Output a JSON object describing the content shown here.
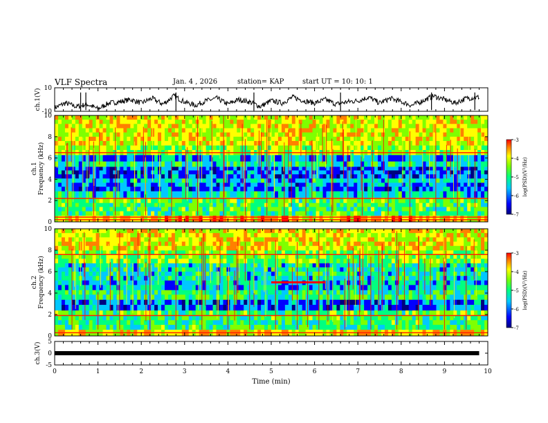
{
  "header": {
    "title": "VLF Spectra",
    "date": "Jan. 4 , 2026",
    "station": "station= KAP",
    "start": "start  UT =   10: 10: 1"
  },
  "colors": {
    "trace": "#000000",
    "colormap": [
      "#00007f",
      "#0000ff",
      "#00c8ff",
      "#00ff80",
      "#7fff00",
      "#ffff00",
      "#ff8000",
      "#ff0000"
    ]
  },
  "chart_data": [
    {
      "type": "line",
      "name": "ch1-waveform",
      "ylabel": "ch.1(V)",
      "ylim": [
        -10,
        10
      ],
      "yticks": [
        "10",
        "-10"
      ],
      "x": [
        0,
        0.25,
        0.5,
        0.75,
        1,
        1.25,
        1.5,
        1.75,
        2,
        2.25,
        2.5,
        2.75,
        3,
        3.25,
        3.5,
        3.75,
        4,
        4.25,
        4.5,
        4.75,
        5,
        5.25,
        5.5,
        5.75,
        6,
        6.25,
        6.5,
        6.75,
        7,
        7.25,
        7.5,
        7.75,
        8,
        8.25,
        8.5,
        8.75,
        9,
        9.25,
        9.5,
        9.8
      ],
      "y": [
        -7,
        -3,
        -6,
        -4,
        -8,
        -3,
        -2,
        0,
        -3,
        1,
        -4,
        3,
        -2,
        -5,
        -1,
        1,
        -4,
        0,
        -2,
        -6,
        -1,
        -3,
        2,
        -1,
        -3,
        0,
        -4,
        -2,
        -1,
        2,
        -3,
        1,
        -2,
        -5,
        -1,
        3,
        0,
        -3,
        1,
        2
      ],
      "spikes_x": [
        0.6,
        0.72,
        2.8,
        4.6,
        6.6,
        8.7,
        9.7
      ]
    },
    {
      "type": "heatmap",
      "name": "ch1-spectrogram",
      "ylabel": "ch.1\nFrequency (kHz)",
      "ylim": [
        0,
        10
      ],
      "yticks": [
        "0",
        "2",
        "4",
        "6",
        "8",
        "10"
      ],
      "colorbar": {
        "label": "log(PSD)(V²/Hz)",
        "range": [
          -7,
          -3
        ],
        "ticks": [
          "-3",
          "-4",
          "-5",
          "-6",
          "-7"
        ]
      },
      "bands_khz": [
        {
          "f0": 0,
          "f1": 0.6,
          "level": 5.5
        },
        {
          "f0": 0.6,
          "f1": 1.8,
          "level": 3.4
        },
        {
          "f0": 1.8,
          "f1": 2.3,
          "level": 3.6
        },
        {
          "f0": 2.3,
          "f1": 2.9,
          "level": 2.6
        },
        {
          "f0": 2.9,
          "f1": 3.7,
          "level": 1.6
        },
        {
          "f0": 3.7,
          "f1": 4.1,
          "level": 2.4
        },
        {
          "f0": 4.1,
          "f1": 5.2,
          "level": 1.4
        },
        {
          "f0": 5.2,
          "f1": 5.7,
          "level": 2.7
        },
        {
          "f0": 5.7,
          "f1": 6.3,
          "level": 1.8
        },
        {
          "f0": 6.3,
          "f1": 7.2,
          "level": 4.2
        },
        {
          "f0": 7.2,
          "f1": 10,
          "level": 4.8
        }
      ],
      "lines_khz": [
        0.2,
        0.45,
        2.2,
        6.5
      ],
      "bursts_min": [
        0.3,
        0.9,
        1.4,
        2.1,
        2.7,
        3.3,
        3.9,
        4.4,
        4.9,
        5.3,
        5.8,
        6.4,
        7.1,
        7.7,
        8.2,
        8.8,
        9.3
      ]
    },
    {
      "type": "heatmap",
      "name": "ch2-spectrogram",
      "ylabel": "ch.2\nFrequency (kHz)",
      "ylim": [
        0,
        10
      ],
      "yticks": [
        "0",
        "2",
        "4",
        "6",
        "8",
        "10"
      ],
      "colorbar": {
        "label": "log(PSD)(V²/Hz)",
        "range": [
          -7,
          -3
        ],
        "ticks": [
          "-3",
          "-4",
          "-5",
          "-6",
          "-7"
        ]
      },
      "bands_khz": [
        {
          "f0": 0,
          "f1": 0.6,
          "level": 5.2
        },
        {
          "f0": 0.6,
          "f1": 1.9,
          "level": 3.3
        },
        {
          "f0": 1.9,
          "f1": 2.4,
          "level": 3.6
        },
        {
          "f0": 2.4,
          "f1": 3.4,
          "level": 1.5
        },
        {
          "f0": 3.4,
          "f1": 4.3,
          "level": 3.1
        },
        {
          "f0": 4.3,
          "f1": 5.2,
          "level": 2.2
        },
        {
          "f0": 5.2,
          "f1": 6.8,
          "level": 2.6
        },
        {
          "f0": 6.8,
          "f1": 8.0,
          "level": 4.0
        },
        {
          "f0": 8.0,
          "f1": 10,
          "level": 4.9
        }
      ],
      "lines_khz": [
        0.3,
        1.9,
        7.6
      ],
      "event": {
        "t0": 5.0,
        "t1": 6.25,
        "f": 5.0
      },
      "bursts_min": [
        0.4,
        1.0,
        1.5,
        2.2,
        2.8,
        3.4,
        4.0,
        4.5,
        5.1,
        5.6,
        6.1,
        6.7,
        7.3,
        7.9,
        8.4,
        9.0,
        9.5
      ]
    },
    {
      "type": "line",
      "name": "ch3-waveform",
      "ylabel": "ch.3(V)",
      "ylim": [
        -5,
        5
      ],
      "yticks": [
        "5",
        "0",
        "-5"
      ],
      "x": [
        0,
        9.8
      ],
      "y": [
        0,
        0
      ]
    }
  ],
  "xaxis": {
    "label": "Time (min)",
    "range": [
      0,
      10
    ],
    "ticks": [
      "0",
      "1",
      "2",
      "3",
      "4",
      "5",
      "6",
      "7",
      "8",
      "9",
      "10"
    ]
  }
}
